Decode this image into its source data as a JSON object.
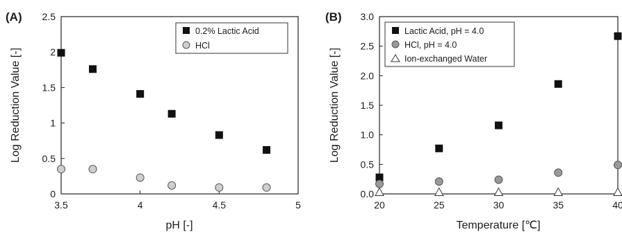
{
  "chart_data": [
    {
      "panel": "(A)",
      "type": "scatter",
      "title": "",
      "xlabel": "pH [-]",
      "ylabel": "Log Reduction Value [-]",
      "xlim": [
        3.5,
        5
      ],
      "ylim": [
        0,
        2.5
      ],
      "xticks": [
        3.5,
        4,
        4.5,
        5
      ],
      "xtick_labels": [
        "3.5",
        "4",
        "4.5",
        "5"
      ],
      "yticks": [
        0,
        0.5,
        1,
        1.5,
        2,
        2.5
      ],
      "ytick_labels": [
        "0",
        "0.5",
        "1",
        "1.5",
        "2",
        "2.5"
      ],
      "grid": false,
      "legend_position": "top-right",
      "series": [
        {
          "name": "0.2% Lactic Acid",
          "marker": "square",
          "fill": "#111111",
          "stroke": "#111111",
          "x": [
            3.5,
            3.7,
            4.0,
            4.2,
            4.5,
            4.8
          ],
          "y": [
            1.99,
            1.76,
            1.41,
            1.13,
            0.83,
            0.62
          ]
        },
        {
          "name": "HCl",
          "marker": "circle",
          "fill": "#cfcfcf",
          "stroke": "#555555",
          "x": [
            3.5,
            3.7,
            4.0,
            4.2,
            4.5,
            4.8
          ],
          "y": [
            0.35,
            0.35,
            0.23,
            0.12,
            0.09,
            0.09
          ]
        }
      ]
    },
    {
      "panel": "(B)",
      "type": "scatter",
      "title": "",
      "xlabel": "Temperature [℃]",
      "ylabel": "Log Reduction Value [-]",
      "xlim": [
        20,
        40
      ],
      "ylim": [
        0,
        3
      ],
      "xticks": [
        20,
        25,
        30,
        35,
        40
      ],
      "xtick_labels": [
        "20",
        "25",
        "30",
        "35",
        "40"
      ],
      "yticks": [
        0,
        0.5,
        1,
        1.5,
        2,
        2.5,
        3
      ],
      "ytick_labels": [
        "0.0",
        "0.5",
        "1.0",
        "1.5",
        "2.0",
        "2.5",
        "3.0"
      ],
      "grid": false,
      "legend_position": "top-left",
      "series": [
        {
          "name": "Lactic Acid, pH = 4.0",
          "marker": "square",
          "fill": "#111111",
          "stroke": "#111111",
          "x": [
            20,
            25,
            30,
            35,
            40
          ],
          "y": [
            0.28,
            0.77,
            1.16,
            1.86,
            2.67
          ]
        },
        {
          "name": "HCl, pH = 4.0",
          "marker": "circle",
          "fill": "#999999",
          "stroke": "#555555",
          "x": [
            20,
            25,
            30,
            35,
            40
          ],
          "y": [
            0.17,
            0.21,
            0.24,
            0.36,
            0.49
          ]
        },
        {
          "name": "Ion-exchanged Water",
          "marker": "triangle",
          "fill": "#ffffff",
          "stroke": "#333333",
          "x": [
            20,
            25,
            30,
            35,
            40
          ],
          "y": [
            0.03,
            0.03,
            0.03,
            0.03,
            0.03
          ]
        }
      ]
    }
  ]
}
